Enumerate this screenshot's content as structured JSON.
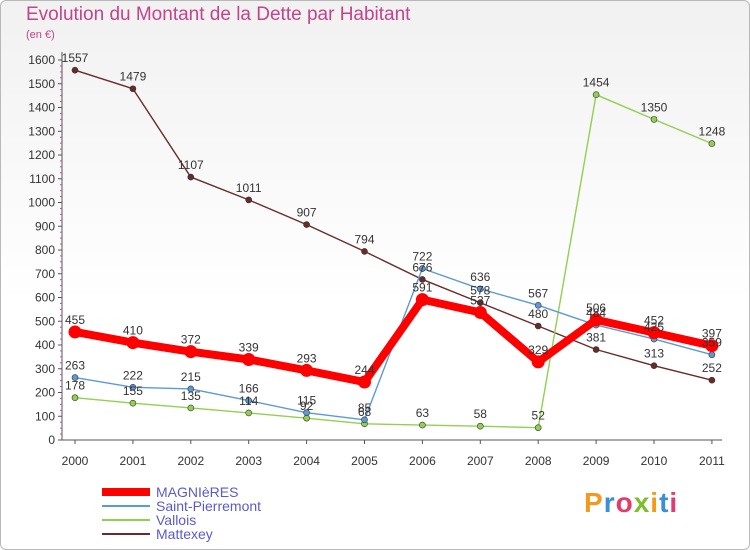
{
  "title": "Evolution du Montant de la Dette par Habitant",
  "subtitle": "(en €)",
  "logo_text": "Proxiti",
  "colors": {
    "title": "#c4448a",
    "magnieres": "#ff0000",
    "saint_pierremont": "#5b9bd5",
    "vallois": "#92d050",
    "mattexey": "#6b2a2a"
  },
  "chart_data": {
    "type": "line",
    "title": "Evolution du Montant de la Dette par Habitant",
    "subtitle": "(en €)",
    "x": [
      "2000",
      "2001",
      "2002",
      "2003",
      "2004",
      "2005",
      "2006",
      "2007",
      "2008",
      "2009",
      "2010",
      "2011"
    ],
    "yticks": [
      "0",
      "100",
      "200",
      "300",
      "400",
      "500",
      "600",
      "700",
      "800",
      "900",
      "1000",
      "1100",
      "1200",
      "1300",
      "1400",
      "1500",
      "1600"
    ],
    "ylim": [
      0,
      1600
    ],
    "grid": false,
    "legend": "bottom-left",
    "series": [
      {
        "name": "MAGNIèRES",
        "color": "#ff0000",
        "values": [
          455,
          410,
          372,
          339,
          293,
          244,
          591,
          537,
          329,
          506,
          452,
          397
        ],
        "labels": [
          "455",
          "410",
          "372",
          "339",
          "293",
          "244",
          "591",
          "537",
          "329",
          "506",
          "452",
          "397"
        ]
      },
      {
        "name": "Saint-Pierremont",
        "color": "#5b9bd5",
        "values": [
          263,
          222,
          215,
          166,
          115,
          85,
          722,
          636,
          567,
          484,
          425,
          359
        ],
        "labels": [
          "263",
          "222",
          "215",
          "166",
          "115",
          "85",
          "722",
          "636",
          "567",
          "484",
          "425",
          "359"
        ]
      },
      {
        "name": "Vallois",
        "color": "#92d050",
        "values": [
          178,
          155,
          135,
          114,
          92,
          68,
          63,
          58,
          52,
          1454,
          1350,
          1248
        ],
        "labels": [
          "178",
          "155",
          "135",
          "114",
          "92",
          "68",
          "63",
          "58",
          "52",
          "1454",
          "1350",
          "1248"
        ]
      },
      {
        "name": "Mattexey",
        "color": "#6b2a2a",
        "values": [
          1557,
          1479,
          1107,
          1011,
          907,
          794,
          676,
          578,
          480,
          381,
          313,
          252
        ],
        "labels": [
          "1557",
          "1479",
          "1107",
          "1011",
          "907",
          "794",
          "676",
          "578",
          "480",
          "381",
          "313",
          "252"
        ]
      }
    ]
  }
}
